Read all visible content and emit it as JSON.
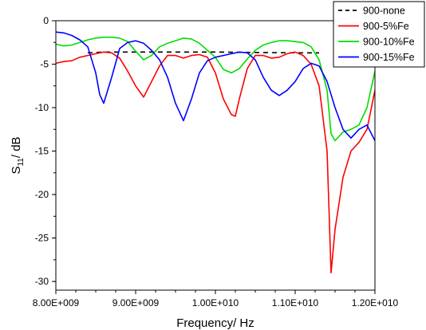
{
  "chart_data": {
    "type": "line",
    "xlabel": "Frequency/ Hz",
    "ylabel_main": "S",
    "ylabel_sub": "11",
    "ylabel_rest": "/ dB",
    "xlim": [
      8000000000.0,
      12000000000.0
    ],
    "ylim": [
      -31,
      0
    ],
    "x_ticks": [
      {
        "value": 8000000000.0,
        "label": "8.00E+009"
      },
      {
        "value": 9000000000.0,
        "label": "9.00E+009"
      },
      {
        "value": 10000000000.0,
        "label": "1.00E+010"
      },
      {
        "value": 11000000000.0,
        "label": "1.10E+010"
      },
      {
        "value": 12000000000.0,
        "label": "1.20E+010"
      }
    ],
    "y_ticks": [
      {
        "value": 0,
        "label": "0"
      },
      {
        "value": -5,
        "label": "-5"
      },
      {
        "value": -10,
        "label": "-10"
      },
      {
        "value": -15,
        "label": "-15"
      },
      {
        "value": -20,
        "label": "-20"
      },
      {
        "value": -25,
        "label": "-25"
      },
      {
        "value": -30,
        "label": "-30"
      }
    ],
    "legend_position": "top-right",
    "series": [
      {
        "name": "900-none",
        "color": "#000000",
        "dash": "6,5",
        "x": [
          8400000000.0,
          8600000000.0,
          9000000000.0,
          9500000000.0,
          10000000000.0,
          10500000000.0,
          11000000000.0,
          11300000000.0
        ],
        "y": [
          -3.7,
          -3.6,
          -3.6,
          -3.6,
          -3.6,
          -3.65,
          -3.7,
          -3.7
        ]
      },
      {
        "name": "900-5%Fe",
        "color": "#ff0000",
        "dash": "",
        "x": [
          8000000000.0,
          8100000000.0,
          8200000000.0,
          8300000000.0,
          8400000000.0,
          8500000000.0,
          8600000000.0,
          8700000000.0,
          8800000000.0,
          8900000000.0,
          9000000000.0,
          9100000000.0,
          9200000000.0,
          9300000000.0,
          9400000000.0,
          9500000000.0,
          9600000000.0,
          9700000000.0,
          9800000000.0,
          9900000000.0,
          10000000000.0,
          10100000000.0,
          10200000000.0,
          10250000000.0,
          10300000000.0,
          10400000000.0,
          10500000000.0,
          10600000000.0,
          10700000000.0,
          10800000000.0,
          10900000000.0,
          11000000000.0,
          11100000000.0,
          11200000000.0,
          11300000000.0,
          11400000000.0,
          11450000000.0,
          11500000000.0,
          11600000000.0,
          11700000000.0,
          11800000000.0,
          11900000000.0,
          12000000000.0
        ],
        "y": [
          -4.9,
          -4.7,
          -4.6,
          -4.2,
          -4.0,
          -3.8,
          -3.6,
          -3.7,
          -4.3,
          -5.8,
          -7.5,
          -8.8,
          -7.0,
          -5.2,
          -4.0,
          -4.0,
          -4.3,
          -4.0,
          -3.9,
          -4.2,
          -6.0,
          -9.0,
          -10.8,
          -11.0,
          -9.0,
          -5.5,
          -4.0,
          -4.0,
          -4.3,
          -4.2,
          -3.8,
          -3.6,
          -4.0,
          -5.0,
          -7.5,
          -15.0,
          -29.0,
          -24.0,
          -18.0,
          -15.0,
          -14.0,
          -12.5,
          -8.0
        ]
      },
      {
        "name": "900-10%Fe",
        "color": "#00dd00",
        "dash": "",
        "x": [
          8000000000.0,
          8100000000.0,
          8200000000.0,
          8300000000.0,
          8400000000.0,
          8500000000.0,
          8600000000.0,
          8700000000.0,
          8800000000.0,
          8900000000.0,
          9000000000.0,
          9100000000.0,
          9200000000.0,
          9300000000.0,
          9400000000.0,
          9500000000.0,
          9600000000.0,
          9700000000.0,
          9800000000.0,
          9900000000.0,
          10000000000.0,
          10100000000.0,
          10200000000.0,
          10300000000.0,
          10400000000.0,
          10500000000.0,
          10600000000.0,
          10700000000.0,
          10800000000.0,
          10900000000.0,
          11000000000.0,
          11100000000.0,
          11200000000.0,
          11300000000.0,
          11400000000.0,
          11450000000.0,
          11500000000.0,
          11600000000.0,
          11700000000.0,
          11800000000.0,
          11900000000.0,
          12000000000.0
        ],
        "y": [
          -2.7,
          -2.9,
          -2.8,
          -2.5,
          -2.2,
          -2.0,
          -1.9,
          -1.9,
          -2.0,
          -2.4,
          -3.5,
          -4.5,
          -4.0,
          -3.0,
          -2.6,
          -2.3,
          -2.0,
          -2.1,
          -2.6,
          -3.4,
          -4.2,
          -5.6,
          -6.0,
          -5.5,
          -4.4,
          -3.4,
          -2.8,
          -2.5,
          -2.3,
          -2.3,
          -2.4,
          -2.5,
          -3.0,
          -4.5,
          -8.0,
          -13.0,
          -13.8,
          -12.8,
          -12.5,
          -12.0,
          -10.0,
          -5.8
        ]
      },
      {
        "name": "900-15%Fe",
        "color": "#0000ff",
        "dash": "",
        "x": [
          8000000000.0,
          8100000000.0,
          8200000000.0,
          8300000000.0,
          8400000000.0,
          8500000000.0,
          8550000000.0,
          8600000000.0,
          8700000000.0,
          8800000000.0,
          8900000000.0,
          9000000000.0,
          9100000000.0,
          9200000000.0,
          9300000000.0,
          9400000000.0,
          9500000000.0,
          9600000000.0,
          9700000000.0,
          9800000000.0,
          9900000000.0,
          10000000000.0,
          10100000000.0,
          10200000000.0,
          10300000000.0,
          10400000000.0,
          10500000000.0,
          10600000000.0,
          10700000000.0,
          10800000000.0,
          10900000000.0,
          11000000000.0,
          11100000000.0,
          11200000000.0,
          11300000000.0,
          11400000000.0,
          11500000000.0,
          11600000000.0,
          11700000000.0,
          11800000000.0,
          11900000000.0,
          12000000000.0
        ],
        "y": [
          -1.3,
          -1.4,
          -1.7,
          -2.2,
          -3.0,
          -6.0,
          -8.5,
          -9.5,
          -6.5,
          -3.2,
          -2.5,
          -2.3,
          -2.6,
          -3.4,
          -4.5,
          -6.5,
          -9.5,
          -11.5,
          -9.0,
          -6.0,
          -4.6,
          -4.2,
          -4.0,
          -3.8,
          -3.6,
          -3.7,
          -4.5,
          -6.5,
          -8.0,
          -8.6,
          -8.0,
          -7.0,
          -5.5,
          -4.9,
          -5.2,
          -7.0,
          -10.0,
          -12.5,
          -13.5,
          -12.5,
          -12.0,
          -13.8
        ]
      }
    ]
  }
}
